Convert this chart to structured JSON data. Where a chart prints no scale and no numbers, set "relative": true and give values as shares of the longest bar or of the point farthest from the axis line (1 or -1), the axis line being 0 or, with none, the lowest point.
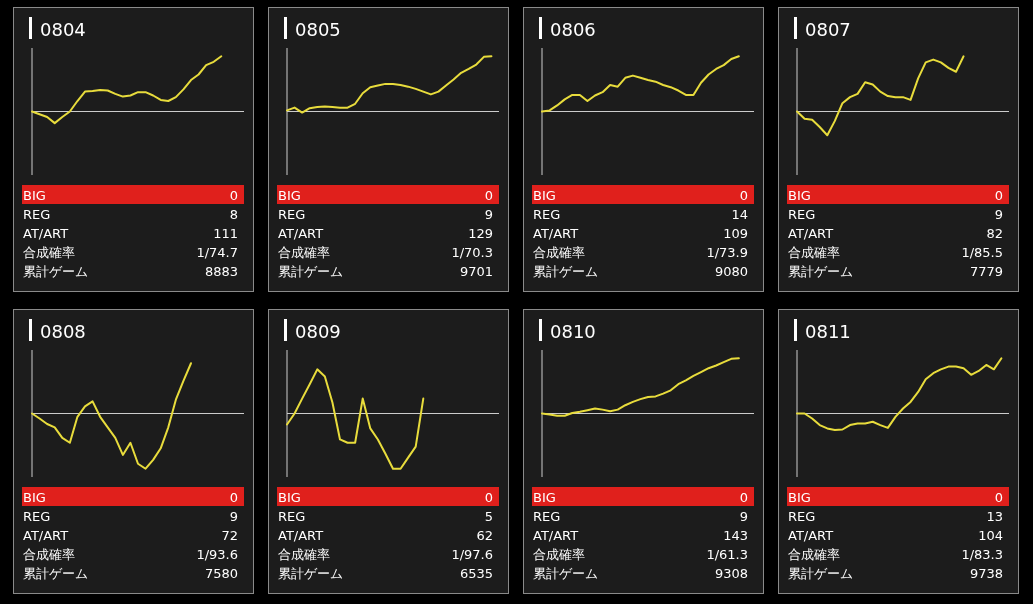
{
  "chart_data": [
    {
      "type": "line",
      "relative": true,
      "title": "0804",
      "categories": [
        null,
        null,
        null,
        null,
        null,
        null,
        null,
        null,
        null,
        null,
        null,
        null,
        null,
        null,
        null,
        null,
        null,
        null,
        null,
        null,
        null,
        null,
        null,
        null,
        null,
        null,
        null,
        null,
        null
      ],
      "series": [
        {
          "color": "#e8dc3c",
          "values": [
            0,
            -0.05,
            -0.1,
            -0.21,
            -0.1,
            0,
            0.19,
            0.36,
            0.37,
            0.39,
            0.38,
            0.32,
            0.27,
            0.29,
            0.35,
            0.35,
            0.29,
            0.21,
            0.19,
            0.26,
            0.4,
            0.57,
            0.67,
            0.84,
            0.9,
            1.0,
            null,
            null,
            null
          ]
        }
      ],
      "annotations": [
        "BIG",
        "0",
        "REG",
        "8",
        "AT/ART",
        "111",
        "合成確率",
        "1/74.7",
        "累計ゲーム",
        "8883"
      ]
    },
    {
      "type": "line",
      "relative": true,
      "title": "0805",
      "categories": [
        null,
        null,
        null,
        null,
        null,
        null,
        null,
        null,
        null,
        null,
        null,
        null,
        null,
        null,
        null,
        null,
        null,
        null,
        null,
        null,
        null,
        null,
        null,
        null,
        null,
        null,
        null,
        null,
        null
      ],
      "series": [
        {
          "color": "#e8dc3c",
          "values": [
            0.02,
            0.07,
            -0.02,
            0.06,
            0.08,
            0.09,
            0.08,
            0.07,
            0.07,
            0.14,
            0.33,
            0.44,
            0.47,
            0.5,
            0.5,
            0.48,
            0.45,
            0.41,
            0.36,
            0.31,
            0.36,
            0.47,
            0.58,
            0.7,
            0.77,
            0.85,
            0.99,
            1.0,
            null
          ]
        }
      ],
      "annotations": [
        "BIG",
        "0",
        "REG",
        "9",
        "AT/ART",
        "129",
        "合成確率",
        "1/70.3",
        "累計ゲーム",
        "9701"
      ]
    },
    {
      "type": "line",
      "relative": true,
      "title": "0806",
      "categories": [
        null,
        null,
        null,
        null,
        null,
        null,
        null,
        null,
        null,
        null,
        null,
        null,
        null,
        null,
        null,
        null,
        null,
        null,
        null,
        null,
        null,
        null,
        null,
        null,
        null,
        null,
        null,
        null,
        null
      ],
      "series": [
        {
          "color": "#e8dc3c",
          "values": [
            0,
            0.02,
            0.11,
            0.22,
            0.3,
            0.3,
            0.19,
            0.29,
            0.35,
            0.48,
            0.45,
            0.61,
            0.65,
            0.61,
            0.57,
            0.54,
            0.48,
            0.44,
            0.38,
            0.3,
            0.3,
            0.52,
            0.67,
            0.77,
            0.84,
            0.95,
            1.0,
            null,
            null
          ]
        }
      ],
      "annotations": [
        "BIG",
        "0",
        "REG",
        "14",
        "AT/ART",
        "109",
        "合成確率",
        "1/73.9",
        "累計ゲーム",
        "9080"
      ]
    },
    {
      "type": "line",
      "relative": true,
      "title": "0807",
      "categories": [
        null,
        null,
        null,
        null,
        null,
        null,
        null,
        null,
        null,
        null,
        null,
        null,
        null,
        null,
        null,
        null,
        null,
        null,
        null,
        null,
        null,
        null,
        null,
        null,
        null,
        null,
        null,
        null,
        null
      ],
      "series": [
        {
          "color": "#e8dc3c",
          "values": [
            0,
            -0.13,
            -0.15,
            -0.28,
            -0.43,
            -0.17,
            0.15,
            0.26,
            0.32,
            0.53,
            0.49,
            0.36,
            0.28,
            0.26,
            0.26,
            0.21,
            0.6,
            0.89,
            0.94,
            0.89,
            0.79,
            0.72,
            1.0,
            null,
            null,
            null,
            null,
            null,
            null
          ]
        }
      ],
      "annotations": [
        "BIG",
        "0",
        "REG",
        "9",
        "AT/ART",
        "82",
        "合成確率",
        "1/85.5",
        "累計ゲーム",
        "7779"
      ]
    },
    {
      "type": "line",
      "relative": true,
      "title": "0808",
      "categories": [
        null,
        null,
        null,
        null,
        null,
        null,
        null,
        null,
        null,
        null,
        null,
        null,
        null,
        null,
        null,
        null,
        null,
        null,
        null,
        null,
        null,
        null,
        null,
        null,
        null,
        null,
        null,
        null,
        null
      ],
      "series": [
        {
          "color": "#e8dc3c",
          "values": [
            0,
            -0.09,
            -0.19,
            -0.25,
            -0.44,
            -0.53,
            -0.06,
            0.13,
            0.22,
            -0.06,
            -0.25,
            -0.44,
            -0.75,
            -0.53,
            -0.91,
            -1.0,
            -0.84,
            -0.63,
            -0.25,
            0.25,
            0.59,
            0.91,
            null,
            null,
            null,
            null,
            null,
            null,
            null
          ]
        }
      ],
      "annotations": [
        "BIG",
        "0",
        "REG",
        "9",
        "AT/ART",
        "72",
        "合成確率",
        "1/93.6",
        "累計ゲーム",
        "7580"
      ]
    },
    {
      "type": "line",
      "relative": true,
      "title": "0809",
      "categories": [
        null,
        null,
        null,
        null,
        null,
        null,
        null,
        null,
        null,
        null,
        null,
        null,
        null,
        null,
        null,
        null,
        null,
        null,
        null,
        null,
        null,
        null,
        null,
        null,
        null,
        null,
        null,
        null,
        null
      ],
      "series": [
        {
          "color": "#e8dc3c",
          "values": [
            -0.2,
            0,
            0.27,
            0.53,
            0.8,
            0.67,
            0.2,
            -0.47,
            -0.53,
            -0.53,
            0.27,
            -0.27,
            -0.47,
            -0.73,
            -1.0,
            -1.0,
            -0.8,
            -0.6,
            0.27,
            null,
            null,
            null,
            null,
            null,
            null,
            null,
            null,
            null,
            null
          ]
        }
      ],
      "annotations": [
        "BIG",
        "0",
        "REG",
        "5",
        "AT/ART",
        "62",
        "合成確率",
        "1/97.6",
        "累計ゲーム",
        "6535"
      ]
    },
    {
      "type": "line",
      "relative": true,
      "title": "0810",
      "categories": [
        null,
        null,
        null,
        null,
        null,
        null,
        null,
        null,
        null,
        null,
        null,
        null,
        null,
        null,
        null,
        null,
        null,
        null,
        null,
        null,
        null,
        null,
        null,
        null,
        null,
        null,
        null,
        null,
        null
      ],
      "series": [
        {
          "color": "#e8dc3c",
          "values": [
            0,
            -0.02,
            -0.04,
            -0.04,
            0.01,
            0.03,
            0.06,
            0.09,
            0.07,
            0.04,
            0.07,
            0.15,
            0.21,
            0.26,
            0.3,
            0.31,
            0.36,
            0.42,
            0.53,
            0.6,
            0.68,
            0.75,
            0.82,
            0.87,
            0.93,
            0.99,
            1.0,
            null,
            null
          ]
        }
      ],
      "annotations": [
        "BIG",
        "0",
        "REG",
        "9",
        "AT/ART",
        "143",
        "合成確率",
        "1/61.3",
        "累計ゲーム",
        "9308"
      ]
    },
    {
      "type": "line",
      "relative": true,
      "title": "0811",
      "categories": [
        null,
        null,
        null,
        null,
        null,
        null,
        null,
        null,
        null,
        null,
        null,
        null,
        null,
        null,
        null,
        null,
        null,
        null,
        null,
        null,
        null,
        null,
        null,
        null,
        null,
        null,
        null,
        null,
        null
      ],
      "series": [
        {
          "color": "#e8dc3c",
          "values": [
            0,
            0,
            -0.09,
            -0.21,
            -0.27,
            -0.3,
            -0.29,
            -0.21,
            -0.18,
            -0.18,
            -0.15,
            -0.21,
            -0.26,
            -0.06,
            0.09,
            0.21,
            0.39,
            0.62,
            0.73,
            0.8,
            0.85,
            0.85,
            0.82,
            0.7,
            0.77,
            0.88,
            0.8,
            1.0,
            null
          ]
        }
      ],
      "annotations": [
        "BIG",
        "0",
        "REG",
        "13",
        "AT/ART",
        "104",
        "合成確率",
        "1/83.3",
        "累計ゲーム",
        "9738"
      ]
    }
  ]
}
